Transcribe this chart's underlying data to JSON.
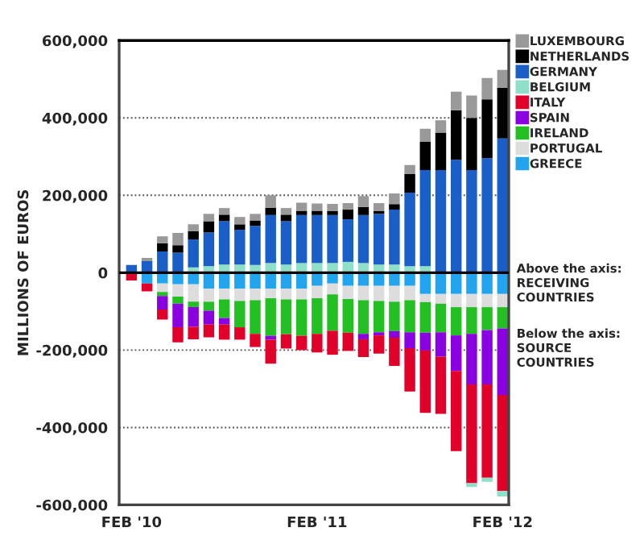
{
  "chart_data": {
    "type": "bar",
    "stacked": true,
    "ylabel": "MILLIONS OF EUROS",
    "categories": [
      "FEB '10",
      null,
      null,
      null,
      null,
      null,
      null,
      null,
      null,
      null,
      null,
      null,
      "FEB '11",
      null,
      null,
      null,
      null,
      null,
      null,
      null,
      null,
      null,
      null,
      null,
      "FEB '12"
    ],
    "series": [
      {
        "name": "GREECE",
        "color": "#22a4ee",
        "values": [
          null,
          -28000,
          -28000,
          -30000,
          -30000,
          -41000,
          -41000,
          -41000,
          -41000,
          -41000,
          -41000,
          -41000,
          -34000,
          -28000,
          -34000,
          -34000,
          -34000,
          -34000,
          -34000,
          -55000,
          -55000,
          -55000,
          -55000,
          -55000,
          -55000
        ]
      },
      {
        "name": "PORTUGAL",
        "color": "#dddddd",
        "values": [
          0,
          null,
          -22000,
          -32000,
          -45000,
          -34000,
          -28000,
          -32000,
          -30000,
          -25000,
          -28000,
          -28000,
          -32000,
          -28000,
          -34000,
          -37000,
          -39000,
          -41000,
          -37000,
          -21000,
          -25000,
          -34000,
          -34000,
          -34000,
          -34000
        ]
      },
      {
        "name": "IRELAND",
        "color": "#22c022",
        "values": [
          0,
          0,
          -10000,
          -18000,
          -14000,
          -23000,
          -48000,
          -68000,
          -87000,
          -97000,
          -90000,
          -94000,
          -92000,
          -94000,
          -87000,
          -87000,
          -81000,
          -76000,
          -83000,
          -79000,
          -74000,
          -73000,
          -69000,
          -59000,
          -55000
        ]
      },
      {
        "name": "SPAIN",
        "color": "#8a00e0",
        "values": [
          0,
          0,
          -35000,
          -61000,
          -51000,
          -36000,
          -17000,
          0,
          0,
          -10000,
          0,
          0,
          0,
          0,
          0,
          -14000,
          -8000,
          -17000,
          -41000,
          -46000,
          -63000,
          -92000,
          -131000,
          -141000,
          -172000
        ]
      },
      {
        "name": "ITALY",
        "color": "#e0002a",
        "values": [
          -20000,
          -20000,
          -26000,
          -39000,
          -32000,
          -33000,
          -39000,
          -32000,
          -34000,
          -62000,
          -37000,
          -37000,
          -48000,
          -62000,
          -47000,
          -46000,
          -47000,
          -73000,
          -112000,
          -161000,
          -148000,
          -207000,
          -255000,
          -241000,
          -248000
        ]
      },
      {
        "name": "BELGIUM",
        "color": "#8fe0c8",
        "values": [
          0,
          0,
          0,
          0,
          14000,
          17000,
          21000,
          21000,
          20000,
          25000,
          21000,
          25000,
          25000,
          25000,
          28000,
          25000,
          21000,
          21000,
          17000,
          17000,
          0,
          0,
          -10000,
          -10000,
          -14000
        ]
      },
      {
        "name": "GERMANY",
        "color": "#1a5fc8",
        "values": [
          20000,
          30000,
          55000,
          52000,
          72000,
          87000,
          112000,
          90000,
          101000,
          124000,
          112000,
          124000,
          124000,
          124000,
          110000,
          124000,
          131000,
          142000,
          190000,
          248000,
          265000,
          292000,
          265000,
          296000,
          347000
        ]
      },
      {
        "name": "NETHERLANDS",
        "color": "#000000",
        "values": [
          0,
          0,
          21000,
          19000,
          21000,
          29000,
          17000,
          14000,
          14000,
          19000,
          17000,
          11000,
          11000,
          10000,
          25000,
          21000,
          7000,
          14000,
          48000,
          73000,
          97000,
          128000,
          135000,
          152000,
          131000
        ]
      },
      {
        "name": "LUXEMBOURG",
        "color": "#999999",
        "values": [
          0,
          8000,
          18000,
          32000,
          18000,
          19000,
          17000,
          19000,
          17000,
          32000,
          17000,
          21000,
          19000,
          19000,
          17000,
          28000,
          21000,
          28000,
          23000,
          34000,
          32000,
          48000,
          58000,
          55000,
          46000
        ]
      }
    ],
    "ylim": [
      -600000,
      600000
    ],
    "yticks": [
      {
        "value": -600000,
        "label": "-600,000"
      },
      {
        "value": -400000,
        "label": "-400,000"
      },
      {
        "value": -200000,
        "label": "-200,000"
      },
      0,
      {
        "value": 200000,
        "label": "200,000"
      },
      {
        "value": 400000,
        "label": "400,000"
      },
      {
        "value": 600000,
        "label": "600,000"
      }
    ],
    "ref_lines": [
      {
        "axis": "y",
        "value": 0,
        "color": "#000000"
      }
    ],
    "grid": "y",
    "legend": "right",
    "annotations": [
      "Above the axis: RECEIVING COUNTRIES",
      "Below the axis: SOURCE COUNTRIES"
    ]
  }
}
